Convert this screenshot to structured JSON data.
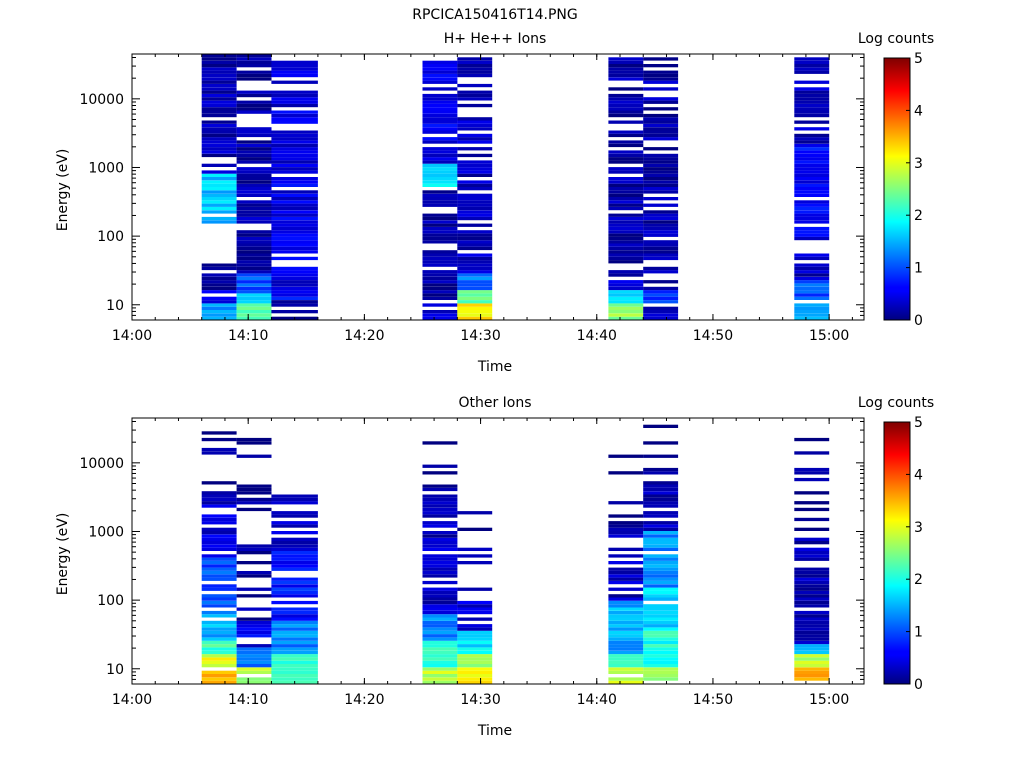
{
  "page_title": "RPCICA150416T14.PNG",
  "chart_data": [
    {
      "type": "heatmap",
      "title": "H+ He++ Ions",
      "xlabel": "Time",
      "ylabel": "Energy (eV)",
      "y_scale": "log",
      "ylim": [
        6,
        45000
      ],
      "x_range": [
        "14:00",
        "15:03"
      ],
      "x_ticks": [
        "14:00",
        "14:10",
        "14:20",
        "14:30",
        "14:40",
        "14:50",
        "15:00"
      ],
      "y_ticks": [
        "10",
        "100",
        "1000",
        "10000"
      ],
      "colorbar": {
        "label": "Log counts",
        "range": [
          0,
          5
        ],
        "ticks": [
          "0",
          "1",
          "2",
          "3",
          "4",
          "5"
        ],
        "colormap": "jet"
      },
      "columns": [
        {
          "start": "14:06",
          "end": "14:09",
          "seed": 3,
          "bands": [
            {
              "emin": 6,
              "emax": 11,
              "value": 1.3
            },
            {
              "emin": 11,
              "emax": 17,
              "value": 0.5
            },
            {
              "emin": 17,
              "emax": 40,
              "value": 0.15
            },
            {
              "emin": 150,
              "emax": 800,
              "value": 1.6
            },
            {
              "emin": 800,
              "emax": 45000,
              "value": 0.25
            }
          ]
        },
        {
          "start": "14:09",
          "end": "14:12",
          "seed": 7,
          "bands": [
            {
              "emin": 6,
              "emax": 10,
              "value": 2.4
            },
            {
              "emin": 10,
              "emax": 14,
              "value": 1.6
            },
            {
              "emin": 14,
              "emax": 30,
              "value": 1.0
            },
            {
              "emin": 30,
              "emax": 45000,
              "value": 0.2
            }
          ]
        },
        {
          "start": "14:12",
          "end": "14:16",
          "seed": 11,
          "bands": [
            {
              "emin": 6,
              "emax": 12,
              "value": 0.05
            },
            {
              "emin": 12,
              "emax": 18,
              "value": 0.6
            },
            {
              "emin": 18,
              "emax": 1000,
              "value": 0.5
            },
            {
              "emin": 1000,
              "emax": 35000,
              "value": 0.45
            }
          ]
        },
        {
          "start": "14:25",
          "end": "14:28",
          "seed": 5,
          "bands": [
            {
              "emin": 6,
              "emax": 11,
              "value": 0.5
            },
            {
              "emin": 11,
              "emax": 500,
              "value": 0.15
            },
            {
              "emin": 500,
              "emax": 1100,
              "value": 1.8
            },
            {
              "emin": 1100,
              "emax": 40000,
              "value": 0.5
            }
          ]
        },
        {
          "start": "14:28",
          "end": "14:31",
          "seed": 13,
          "bands": [
            {
              "emin": 6,
              "emax": 11,
              "value": 3.2
            },
            {
              "emin": 11,
              "emax": 16,
              "value": 2.4
            },
            {
              "emin": 16,
              "emax": 30,
              "value": 1.2
            },
            {
              "emin": 30,
              "emax": 40000,
              "value": 0.3
            }
          ]
        },
        {
          "start": "14:41",
          "end": "14:44",
          "seed": 17,
          "bands": [
            {
              "emin": 6,
              "emax": 11,
              "value": 2.6
            },
            {
              "emin": 11,
              "emax": 16,
              "value": 1.8
            },
            {
              "emin": 16,
              "emax": 25,
              "value": 0.6
            },
            {
              "emin": 25,
              "emax": 40000,
              "value": 0.2
            }
          ]
        },
        {
          "start": "14:44",
          "end": "14:47",
          "seed": 19,
          "bands": [
            {
              "emin": 6,
              "emax": 11,
              "value": 0.3
            },
            {
              "emin": 11,
              "emax": 16,
              "value": 0.8
            },
            {
              "emin": 16,
              "emax": 42000,
              "value": 0.2
            }
          ]
        },
        {
          "start": "14:57",
          "end": "15:00",
          "seed": 23,
          "bands": [
            {
              "emin": 6,
              "emax": 11,
              "value": 1.4
            },
            {
              "emin": 11,
              "emax": 22,
              "value": 1.0
            },
            {
              "emin": 22,
              "emax": 100,
              "value": 0.3
            },
            {
              "emin": 100,
              "emax": 2000,
              "value": 0.6
            },
            {
              "emin": 2000,
              "emax": 42000,
              "value": 0.3
            }
          ]
        }
      ]
    },
    {
      "type": "heatmap",
      "title": "Other Ions",
      "xlabel": "Time",
      "ylabel": "Energy (eV)",
      "y_scale": "log",
      "ylim": [
        6,
        45000
      ],
      "x_range": [
        "14:00",
        "15:03"
      ],
      "x_ticks": [
        "14:00",
        "14:10",
        "14:20",
        "14:30",
        "14:40",
        "14:50",
        "15:00"
      ],
      "y_ticks": [
        "10",
        "100",
        "1000",
        "10000"
      ],
      "colorbar": {
        "label": "Log counts",
        "range": [
          0,
          5
        ],
        "ticks": [
          "0",
          "1",
          "2",
          "3",
          "4",
          "5"
        ],
        "colormap": "jet"
      },
      "columns": [
        {
          "start": "14:06",
          "end": "14:09",
          "seed": 29,
          "bands": [
            {
              "emin": 6,
              "emax": 11,
              "value": 3.5
            },
            {
              "emin": 11,
              "emax": 16,
              "value": 3.0
            },
            {
              "emin": 16,
              "emax": 25,
              "value": 2.2
            },
            {
              "emin": 25,
              "emax": 60,
              "value": 1.5
            },
            {
              "emin": 60,
              "emax": 400,
              "value": 1.0
            },
            {
              "emin": 400,
              "emax": 3000,
              "value": 0.4
            },
            {
              "emin": 3000,
              "emax": 28000,
              "value": 0.05,
              "sparse": true
            }
          ]
        },
        {
          "start": "14:09",
          "end": "14:12",
          "seed": 31,
          "bands": [
            {
              "emin": 6,
              "emax": 11,
              "value": 2.7
            },
            {
              "emin": 11,
              "emax": 20,
              "value": 1.2
            },
            {
              "emin": 20,
              "emax": 50,
              "value": 0.5
            },
            {
              "emin": 50,
              "emax": 1300,
              "value": 0.1,
              "sparse": true
            },
            {
              "emin": 1300,
              "emax": 24000,
              "value": 0.05,
              "sparse": true
            }
          ]
        },
        {
          "start": "14:12",
          "end": "14:16",
          "seed": 37,
          "bands": [
            {
              "emin": 6,
              "emax": 16,
              "value": 2.0
            },
            {
              "emin": 16,
              "emax": 50,
              "value": 1.3
            },
            {
              "emin": 50,
              "emax": 500,
              "value": 0.7
            },
            {
              "emin": 500,
              "emax": 3500,
              "value": 0.3
            }
          ]
        },
        {
          "start": "14:25",
          "end": "14:28",
          "seed": 41,
          "bands": [
            {
              "emin": 6,
              "emax": 11,
              "value": 2.8
            },
            {
              "emin": 11,
              "emax": 25,
              "value": 2.1
            },
            {
              "emin": 25,
              "emax": 60,
              "value": 1.3
            },
            {
              "emin": 60,
              "emax": 4500,
              "value": 0.3
            },
            {
              "emin": 4500,
              "emax": 32000,
              "value": 0.05,
              "sparse": true
            }
          ]
        },
        {
          "start": "14:28",
          "end": "14:31",
          "seed": 43,
          "bands": [
            {
              "emin": 6,
              "emax": 11,
              "value": 3.2
            },
            {
              "emin": 11,
              "emax": 16,
              "value": 2.6
            },
            {
              "emin": 16,
              "emax": 35,
              "value": 1.8
            },
            {
              "emin": 35,
              "emax": 100,
              "value": 0.4
            },
            {
              "emin": 100,
              "emax": 6500,
              "value": 0.1,
              "sparse": true
            }
          ]
        },
        {
          "start": "14:41",
          "end": "14:44",
          "seed": 47,
          "bands": [
            {
              "emin": 6,
              "emax": 11,
              "value": 2.8
            },
            {
              "emin": 11,
              "emax": 16,
              "value": 2.2
            },
            {
              "emin": 16,
              "emax": 30,
              "value": 1.3
            },
            {
              "emin": 30,
              "emax": 100,
              "value": 1.5
            },
            {
              "emin": 100,
              "emax": 1200,
              "value": 0.3
            },
            {
              "emin": 1200,
              "emax": 28000,
              "value": 0.05,
              "sparse": true
            }
          ]
        },
        {
          "start": "14:44",
          "end": "14:47",
          "seed": 53,
          "bands": [
            {
              "emin": 6,
              "emax": 11,
              "value": 2.7
            },
            {
              "emin": 11,
              "emax": 35,
              "value": 2.0
            },
            {
              "emin": 35,
              "emax": 150,
              "value": 1.7
            },
            {
              "emin": 150,
              "emax": 1000,
              "value": 1.3
            },
            {
              "emin": 1000,
              "emax": 5500,
              "value": 0.3
            },
            {
              "emin": 5500,
              "emax": 42000,
              "value": 0.05,
              "sparse": true
            }
          ]
        },
        {
          "start": "14:57",
          "end": "15:00",
          "seed": 59,
          "bands": [
            {
              "emin": 6,
              "emax": 11,
              "value": 3.5
            },
            {
              "emin": 11,
              "emax": 16,
              "value": 2.8
            },
            {
              "emin": 16,
              "emax": 22,
              "value": 1.5
            },
            {
              "emin": 22,
              "emax": 800,
              "value": 0.3
            },
            {
              "emin": 800,
              "emax": 23000,
              "value": 0.05,
              "sparse": true
            }
          ]
        }
      ]
    }
  ]
}
